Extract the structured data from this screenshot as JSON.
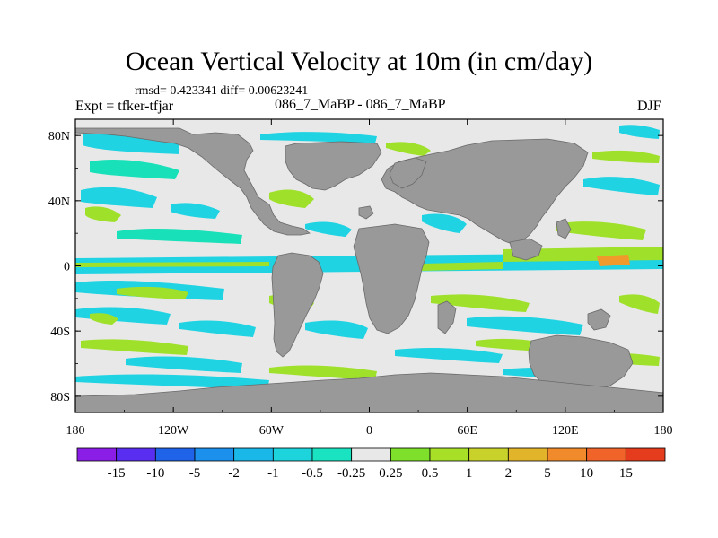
{
  "title": "Ocean Vertical Velocity at 10m (in cm/day)",
  "stats_line": "rmsd= 0.423341 diff= 0.00623241",
  "expt_label": "Expt = tfker-tfjar",
  "case_label": "086_7_MaBP - 086_7_MaBP",
  "season_label": "DJF",
  "colors": {
    "land": "#999999",
    "ocean_zero": "#e8e8e8",
    "cyan": "#1fd3e3",
    "teal": "#18e0b8",
    "green": "#9fe02a",
    "yellow_green": "#c6d92a",
    "orange": "#f19a2c"
  },
  "chart_data": {
    "type": "heatmap",
    "x_ticks": [
      "180",
      "120W",
      "60W",
      "0",
      "60E",
      "120E",
      "180"
    ],
    "y_ticks": [
      "80N",
      "40N",
      "0",
      "40S",
      "80S"
    ],
    "xlim": [
      -180,
      180
    ],
    "ylim": [
      -90,
      90
    ],
    "colorbar": {
      "labels": [
        "-15",
        "-10",
        "-5",
        "-2",
        "-1",
        "-0.5",
        "-0.25",
        "0.25",
        "0.5",
        "1",
        "2",
        "5",
        "10",
        "15"
      ],
      "colors": [
        "#8b1ee6",
        "#5a2ef0",
        "#1f63e8",
        "#1b90ec",
        "#1ab8e8",
        "#1dd4dc",
        "#19e3c0",
        "#e8e8e8",
        "#7ee02a",
        "#a8e028",
        "#c8d22a",
        "#e2b42a",
        "#f08a2a",
        "#f0642a",
        "#e63c1e"
      ]
    }
  }
}
